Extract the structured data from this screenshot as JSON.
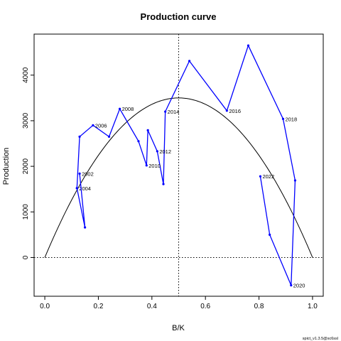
{
  "chart_data": {
    "type": "line",
    "title": "Production curve",
    "xlabel": "B/K",
    "ylabel": "Production",
    "xlim": [
      -0.04,
      1.04
    ],
    "ylim": [
      -850,
      4900
    ],
    "x_ticks": [
      "0.0",
      "0.2",
      "0.4",
      "0.6",
      "0.8",
      "1.0"
    ],
    "x_tick_values": [
      0,
      0.2,
      0.4,
      0.6,
      0.8,
      1.0
    ],
    "y_ticks": [
      "0",
      "1000",
      "2000",
      "3000",
      "4000"
    ],
    "y_tick_values": [
      0,
      1000,
      2000,
      3000,
      4000
    ],
    "grid": false,
    "reference_lines": {
      "vertical_x": 0.5,
      "horizontal_y": 0
    },
    "curve": {
      "color": "#000000",
      "peak_x": 0.5,
      "peak_y": 3500,
      "x_range": [
        0,
        1
      ]
    },
    "series": [
      {
        "color": "#0000ff",
        "points": [
          {
            "x": 0.12,
            "y": 1520,
            "label": "2004"
          },
          {
            "x": 0.13,
            "y": 2650,
            "label": ""
          },
          {
            "x": 0.18,
            "y": 2900,
            "label": "2006"
          },
          {
            "x": 0.24,
            "y": 2650,
            "label": ""
          },
          {
            "x": 0.28,
            "y": 3260,
            "label": "2008"
          },
          {
            "x": 0.35,
            "y": 2550,
            "label": ""
          },
          {
            "x": 0.38,
            "y": 2020,
            "label": "2010"
          },
          {
            "x": 0.385,
            "y": 2790,
            "label": ""
          },
          {
            "x": 0.42,
            "y": 2330,
            "label": "2012"
          },
          {
            "x": 0.443,
            "y": 1610,
            "label": ""
          },
          {
            "x": 0.45,
            "y": 3200,
            "label": "2014"
          },
          {
            "x": 0.54,
            "y": 4310,
            "label": ""
          },
          {
            "x": 0.68,
            "y": 3220,
            "label": "2016"
          },
          {
            "x": 0.76,
            "y": 4650,
            "label": ""
          },
          {
            "x": 0.89,
            "y": 3040,
            "label": "2018"
          },
          {
            "x": 0.935,
            "y": 1690,
            "label": ""
          },
          {
            "x": 0.92,
            "y": -610,
            "label": "2020"
          },
          {
            "x": 0.84,
            "y": 500,
            "label": ""
          },
          {
            "x": 0.805,
            "y": 1780,
            "label": "2022"
          }
        ]
      },
      {
        "color": "#0000ff",
        "points": [
          {
            "x": 0.13,
            "y": 1840,
            "label": "2002"
          },
          {
            "x": 0.15,
            "y": 660,
            "label": ""
          },
          {
            "x": 0.12,
            "y": 1520,
            "label": ""
          }
        ]
      }
    ]
  },
  "footnote": "spict_v1.3.5@sc6ssl"
}
